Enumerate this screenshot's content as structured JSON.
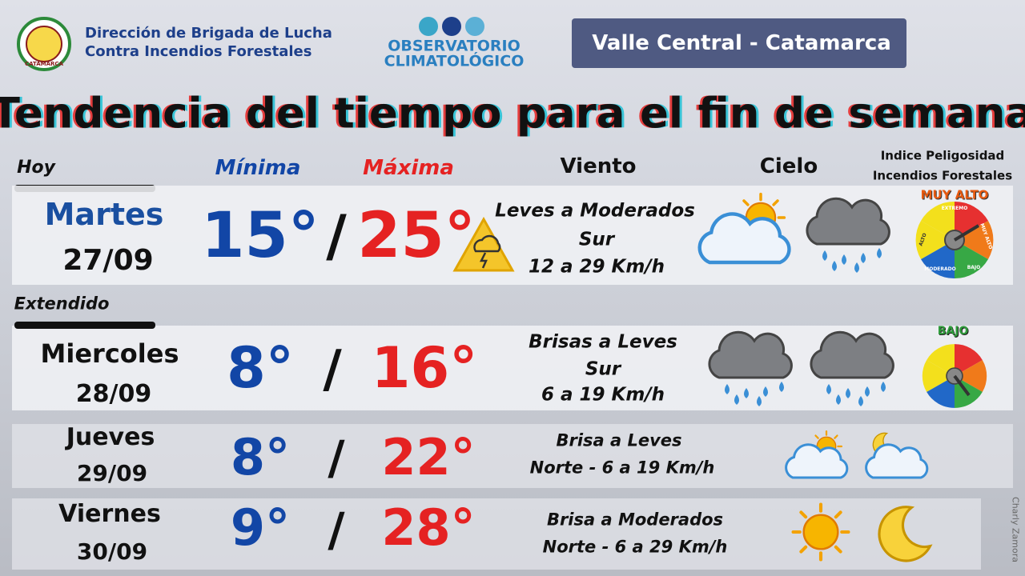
{
  "header": {
    "org_lines": [
      "Dirección de Brigada de Lucha",
      "Contra Incendios Forestales"
    ],
    "seal_text": "CATAMARCA",
    "observatory": [
      "OBSERVATORIO",
      "CLIMATOLÓGICO"
    ],
    "region": "Valle Central - Catamarca",
    "title": "Tendencia del tiempo para el fin de semana"
  },
  "sections": {
    "today": "Hoy",
    "extended": "Extendido"
  },
  "columns": {
    "min": "Mínima",
    "max": "Máxima",
    "wind": "Viento",
    "sky": "Cielo",
    "risk": [
      "Indice Peligosidad",
      "Incendios Forestales"
    ]
  },
  "gauge_labels": [
    "EXTREMO",
    "MUY ALTO",
    "BAJO",
    "MODERADO",
    "ALTO"
  ],
  "rows": [
    {
      "day": "Martes",
      "date": "27/09",
      "min": "15°",
      "separator": "/",
      "max": "25°",
      "wind": [
        "Leves a Moderados",
        "Sur",
        "12 a 29 Km/h"
      ],
      "risk": "MUY ALTO"
    },
    {
      "day": "Miercoles",
      "date": "28/09",
      "min": "8°",
      "separator": "/",
      "max": "16°",
      "wind": [
        "Brisas a Leves",
        "Sur",
        "6 a 19 Km/h"
      ],
      "risk": "BAJO"
    },
    {
      "day": "Jueves",
      "date": "29/09",
      "min": "8°",
      "separator": "/",
      "max": "22°",
      "wind": [
        "Brisa a Leves",
        "Norte - 6 a 19 Km/h"
      ]
    },
    {
      "day": "Viernes",
      "date": "30/09",
      "min": "9°",
      "separator": "/",
      "max": "28°",
      "wind": [
        "Brisa a Moderados",
        "Norte - 6 a 29 Km/h"
      ]
    }
  ],
  "watermark": "Charly Zamora"
}
